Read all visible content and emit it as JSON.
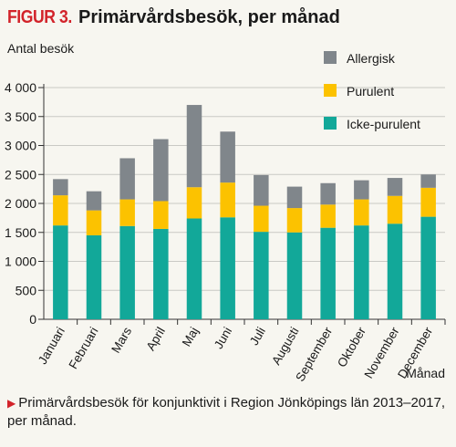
{
  "figure_label": "FIGUR 3.",
  "figure_title": "Primärvårdsbesök, per månad",
  "caption_marker": "▶",
  "caption": "Primärvårdsbesök för konjunktivit i Region Jönköpings län 2013–2017, per månad.",
  "chart_data": {
    "type": "bar",
    "stacked": true,
    "ylabel": "Antal besök",
    "xlabel": "Månad",
    "ylim": [
      0,
      4000
    ],
    "yticks": [
      0,
      500,
      1000,
      1500,
      2000,
      2500,
      3000,
      3500,
      4000
    ],
    "ytick_labels": [
      "0",
      "500",
      "1 000",
      "1 500",
      "2 000",
      "2 500",
      "3 000",
      "3 500",
      "4 000"
    ],
    "grid": true,
    "legend_position": "top-right",
    "categories": [
      "Januari",
      "Februari",
      "Mars",
      "April",
      "Maj",
      "Juni",
      "Juli",
      "Augusti",
      "September",
      "Oktober",
      "November",
      "December"
    ],
    "series": [
      {
        "name": "Icke-purulent",
        "color": "#12a899",
        "values": [
          1620,
          1450,
          1610,
          1560,
          1740,
          1760,
          1510,
          1500,
          1580,
          1620,
          1650,
          1770
        ]
      },
      {
        "name": "Purulent",
        "color": "#fcc200",
        "values": [
          520,
          430,
          460,
          480,
          540,
          600,
          450,
          420,
          400,
          450,
          480,
          500
        ]
      },
      {
        "name": "Allergisk",
        "color": "#80868b",
        "values": [
          280,
          330,
          710,
          1070,
          1420,
          880,
          530,
          370,
          370,
          330,
          310,
          230
        ]
      }
    ],
    "legend_order": [
      "Allergisk",
      "Purulent",
      "Icke-purulent"
    ]
  }
}
